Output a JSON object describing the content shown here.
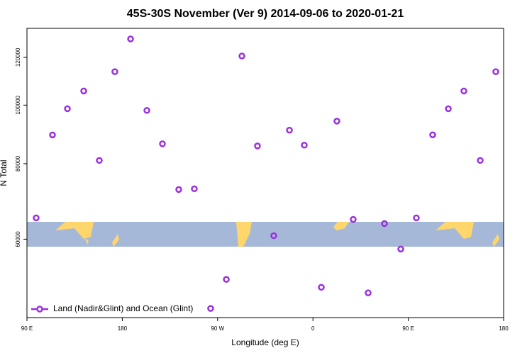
{
  "chart_data": {
    "type": "scatter",
    "title": "45S-30S November (Ver 9)   2014-09-06 to 2020-01-21",
    "x_label": "Longitude (deg E)",
    "y_label": "N Total",
    "log_y": true,
    "xlim": [
      90,
      540
    ],
    "xticks": [
      {
        "value": 90,
        "label": "90 E"
      },
      {
        "value": 180,
        "label": "180"
      },
      {
        "value": 270,
        "label": "90 W"
      },
      {
        "value": 360,
        "label": "0"
      },
      {
        "value": 450,
        "label": "90 E"
      },
      {
        "value": 540,
        "label": "180"
      }
    ],
    "ylim": [
      44500,
      134000
    ],
    "yticks": [
      60000,
      80000,
      100000,
      120000
    ],
    "legend": "bottom-left",
    "series": [
      {
        "name": "Land (Nadir&Glint) and Ocean (Glint)",
        "color": "#9b30e0",
        "x": [
          98.7,
          114.1,
          128.2,
          143.6,
          158.3,
          173.0,
          187.8,
          203.2,
          217.9,
          233.3,
          248.0,
          263.4,
          278.2,
          292.9,
          307.6,
          323.0,
          337.8,
          351.8,
          367.9,
          382.6,
          398.0,
          412.1,
          427.5,
          442.9,
          457.6,
          473.0,
          487.8,
          502.5,
          517.9,
          532.6
        ],
        "values": [
          65070,
          89270,
          98650,
          105540,
          81000,
          113600,
          128700,
          98000,
          86300,
          72500,
          72700,
          46080,
          51470,
          120600,
          85600,
          60800,
          90900,
          85860,
          49950,
          94100,
          64700,
          48900,
          63670,
          57780,
          65070,
          89300,
          98650,
          105540,
          81000,
          113600
        ]
      }
    ]
  }
}
